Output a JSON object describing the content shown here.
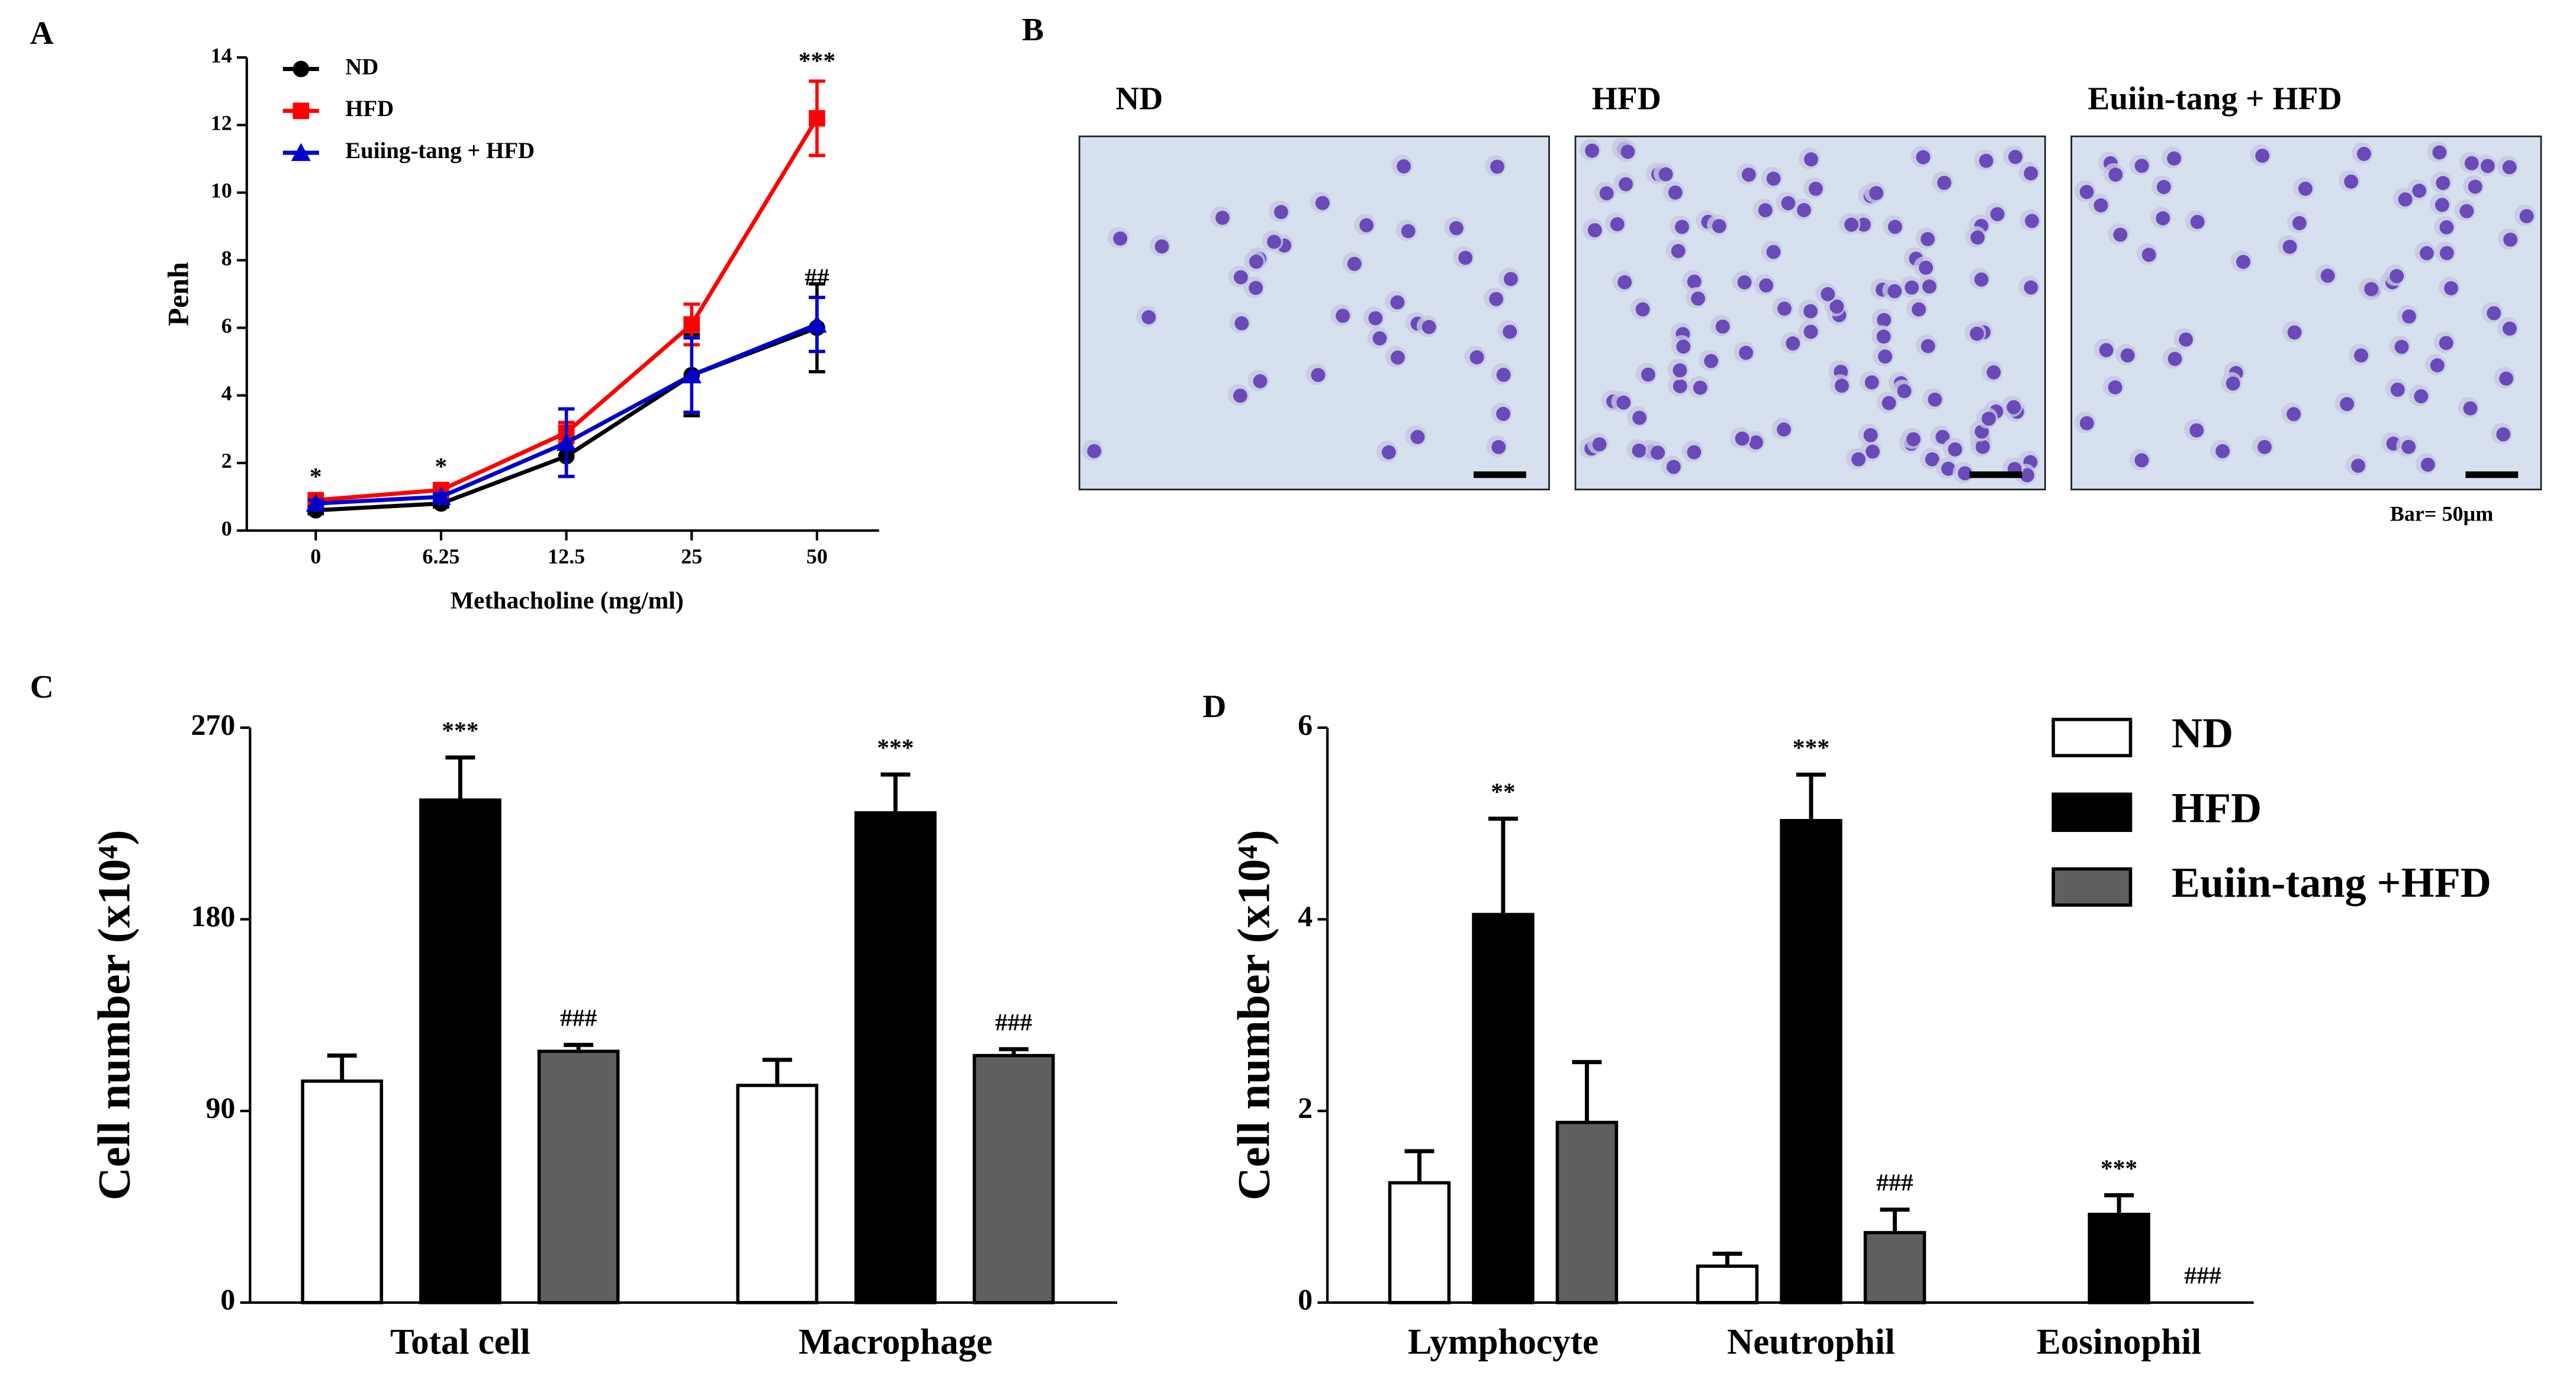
{
  "chart_data": [
    {
      "type": "line",
      "panel": "A",
      "xlabel": "Methacholine (mg/ml)",
      "ylabel": "Penh",
      "categories": [
        "0",
        "6.25",
        "12.5",
        "25",
        "50"
      ],
      "ylim": [
        0,
        14
      ],
      "yticks": [
        0,
        2,
        4,
        6,
        8,
        10,
        12,
        14
      ],
      "legend": "upper left",
      "series": [
        {
          "name": "ND",
          "color": "#000000",
          "marker": "circle",
          "values": [
            0.6,
            0.8,
            2.2,
            4.6,
            6.0
          ],
          "errors": [
            0.1,
            0.1,
            0.6,
            1.2,
            1.3
          ],
          "annotations": [
            null,
            null,
            null,
            null,
            null
          ]
        },
        {
          "name": "HFD",
          "color": "#ff0000",
          "marker": "square",
          "values": [
            0.9,
            1.2,
            2.9,
            6.1,
            12.2
          ],
          "errors": [
            0.1,
            0.1,
            0.3,
            0.6,
            1.1
          ],
          "annotations": [
            "*",
            "*",
            null,
            null,
            "***"
          ]
        },
        {
          "name": "Euiing-tang + HFD",
          "color": "#0000cc",
          "marker": "triangle",
          "values": [
            0.8,
            1.0,
            2.6,
            4.6,
            6.1
          ],
          "errors": [
            0.1,
            0.1,
            1.0,
            1.1,
            0.8
          ],
          "annotations": [
            null,
            null,
            null,
            null,
            "##"
          ]
        }
      ]
    },
    {
      "type": "image",
      "panel": "B",
      "titles": [
        "ND",
        "HFD",
        "Euiin-tang + HFD"
      ],
      "scale_bar": "Bar= 50µm"
    },
    {
      "type": "bar",
      "panel": "C",
      "ylabel": "Cell number (x10⁴)",
      "categories": [
        "Total cell",
        "Macrophage"
      ],
      "ylim": [
        0,
        270
      ],
      "yticks": [
        0,
        90,
        180,
        270
      ],
      "series": [
        {
          "name": "ND",
          "color": "#ffffff",
          "values": [
            104,
            102
          ],
          "errors": [
            12,
            12
          ],
          "annotations": [
            null,
            null
          ]
        },
        {
          "name": "HFD",
          "color": "#000000",
          "values": [
            236,
            230
          ],
          "errors": [
            20,
            18
          ],
          "annotations": [
            "***",
            "***"
          ]
        },
        {
          "name": "Euiin-tang +HFD",
          "color": "#5f5f5f",
          "values": [
            118,
            116
          ],
          "errors": [
            3,
            3
          ],
          "annotations": [
            "###",
            "###"
          ]
        }
      ]
    },
    {
      "type": "bar",
      "panel": "D",
      "ylabel": "Cell number (x10⁴)",
      "categories": [
        "Lymphocyte",
        "Neutrophil",
        "Eosinophil"
      ],
      "ylim": [
        0,
        6
      ],
      "yticks": [
        0,
        2,
        4,
        6
      ],
      "legend": "upper right",
      "series": [
        {
          "name": "ND",
          "color": "#ffffff",
          "values": [
            1.25,
            0.38,
            0
          ],
          "errors": [
            0.33,
            0.13,
            null
          ],
          "annotations": [
            null,
            null,
            null
          ]
        },
        {
          "name": "HFD",
          "color": "#000000",
          "values": [
            4.05,
            5.03,
            0.92
          ],
          "errors": [
            1.0,
            0.48,
            0.2
          ],
          "annotations": [
            "**",
            "***",
            "***"
          ]
        },
        {
          "name": "Euiin-tang +HFD",
          "color": "#5f5f5f",
          "values": [
            1.88,
            0.73,
            0
          ],
          "errors": [
            0.63,
            0.24,
            null
          ],
          "annotations": [
            null,
            "###",
            "###"
          ]
        }
      ]
    }
  ]
}
